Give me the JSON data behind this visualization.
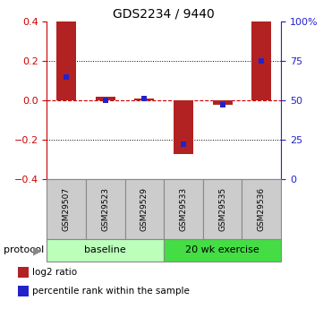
{
  "title": "GDS2234 / 9440",
  "samples": [
    "GSM29507",
    "GSM29523",
    "GSM29529",
    "GSM29533",
    "GSM29535",
    "GSM29536"
  ],
  "log2_ratio": [
    0.4,
    0.02,
    0.01,
    -0.27,
    -0.02,
    0.4
  ],
  "percentile_rank": [
    65,
    50,
    51,
    22,
    47,
    75
  ],
  "ylim_left": [
    -0.4,
    0.4
  ],
  "ylim_right": [
    0,
    100
  ],
  "yticks_left": [
    -0.4,
    -0.2,
    0.0,
    0.2,
    0.4
  ],
  "yticks_right": [
    0,
    25,
    50,
    75,
    100
  ],
  "ytick_labels_right": [
    "0",
    "25",
    "50",
    "75",
    "100%"
  ],
  "bar_color": "#b22222",
  "percentile_color": "#2222cc",
  "zero_line_color": "#cc0000",
  "bar_width": 0.5,
  "percentile_marker_size": 5,
  "protocol_groups": [
    {
      "label": "baseline",
      "start": 0,
      "end": 3,
      "color": "#bbffbb"
    },
    {
      "label": "20 wk exercise",
      "start": 3,
      "end": 6,
      "color": "#44dd44"
    }
  ],
  "protocol_label": "protocol",
  "legend_items": [
    {
      "color": "#b22222",
      "label": "log2 ratio"
    },
    {
      "color": "#2222cc",
      "label": "percentile rank within the sample"
    }
  ],
  "tick_label_color_left": "#cc0000",
  "tick_label_color_right": "#2222cc",
  "background_color": "#ffffff",
  "sample_box_color": "#cccccc",
  "sample_box_edge": "#888888"
}
